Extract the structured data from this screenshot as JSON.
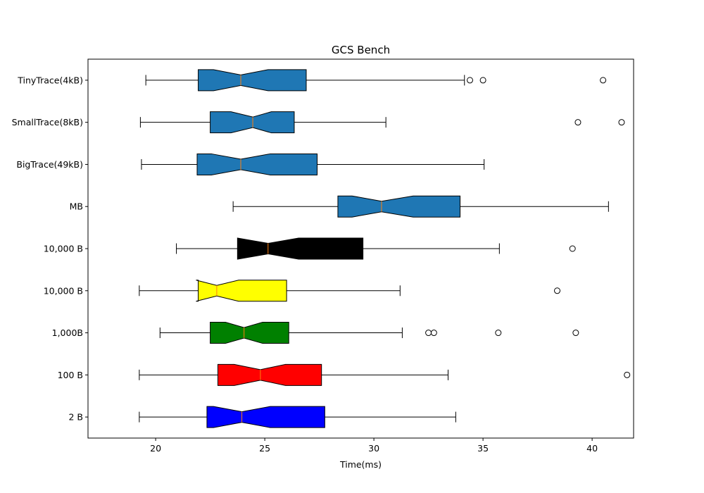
{
  "chart_data": {
    "type": "boxplot",
    "orientation": "horizontal",
    "notched": true,
    "title": "GCS Bench",
    "xlabel": "Time(ms)",
    "ylabel": "",
    "xlim": [
      16.9,
      41.9
    ],
    "xticks": [
      20,
      25,
      30,
      35,
      40
    ],
    "xtick_labels": [
      "20",
      "25",
      "30",
      "35",
      "40"
    ],
    "grid": false,
    "categories": [
      "TinyTrace(4kB)",
      "SmallTrace(8kB)",
      "BigTrace(49kB)",
      "MB",
      "10,000 B",
      "10,000 B",
      "1,000B",
      "100 B",
      "2 B"
    ],
    "boxes": [
      {
        "label": "TinyTrace(4kB)",
        "color": "#1f77b4",
        "whisker_low": 19.55,
        "q1": 21.95,
        "notch_low": 22.65,
        "median": 23.9,
        "notch_high": 25.15,
        "q3": 26.9,
        "whisker_high": 34.15,
        "outliers": [
          34.4,
          35.0,
          40.5
        ]
      },
      {
        "label": "SmallTrace(8kB)",
        "color": "#1f77b4",
        "whisker_low": 19.3,
        "q1": 22.5,
        "notch_low": 23.45,
        "median": 24.45,
        "notch_high": 25.3,
        "q3": 26.35,
        "whisker_high": 30.55,
        "outliers": [
          39.35,
          41.35
        ]
      },
      {
        "label": "BigTrace(49kB)",
        "color": "#1f77b4",
        "whisker_low": 19.35,
        "q1": 21.9,
        "notch_low": 22.55,
        "median": 23.9,
        "notch_high": 25.25,
        "q3": 27.4,
        "whisker_high": 35.05,
        "outliers": []
      },
      {
        "label": "MB",
        "color": "#1f77b4",
        "whisker_low": 23.55,
        "q1": 28.35,
        "notch_low": 29.0,
        "median": 30.35,
        "notch_high": 31.8,
        "q3": 33.95,
        "whisker_high": 40.75,
        "outliers": []
      },
      {
        "label": "10,000 B",
        "color": "#000000",
        "whisker_low": 20.95,
        "q1": 23.75,
        "notch_low": 23.75,
        "median": 25.15,
        "notch_high": 26.55,
        "q3": 29.5,
        "whisker_high": 35.75,
        "outliers": [
          39.1
        ]
      },
      {
        "label": "10,000 B",
        "color": "#ffff00",
        "whisker_low": 19.25,
        "q1": 21.95,
        "notch_low": 21.85,
        "median": 22.8,
        "notch_high": 23.8,
        "q3": 26.0,
        "whisker_high": 31.2,
        "outliers": [
          38.4
        ]
      },
      {
        "label": "1,000B",
        "color": "#008000",
        "whisker_low": 20.2,
        "q1": 22.5,
        "notch_low": 23.2,
        "median": 24.05,
        "notch_high": 24.9,
        "q3": 26.1,
        "whisker_high": 31.3,
        "outliers": [
          32.5,
          32.75,
          35.7,
          39.25
        ]
      },
      {
        "label": "100 B",
        "color": "#ff0000",
        "whisker_low": 19.25,
        "q1": 22.85,
        "notch_low": 23.6,
        "median": 24.8,
        "notch_high": 25.95,
        "q3": 27.6,
        "whisker_high": 33.4,
        "outliers": [
          41.6
        ]
      },
      {
        "label": "2 B",
        "color": "#0000ff",
        "whisker_low": 19.25,
        "q1": 22.35,
        "notch_low": 22.65,
        "median": 23.95,
        "notch_high": 25.25,
        "q3": 27.75,
        "whisker_high": 33.75,
        "outliers": []
      }
    ],
    "median_color": "#ff7f0e"
  }
}
